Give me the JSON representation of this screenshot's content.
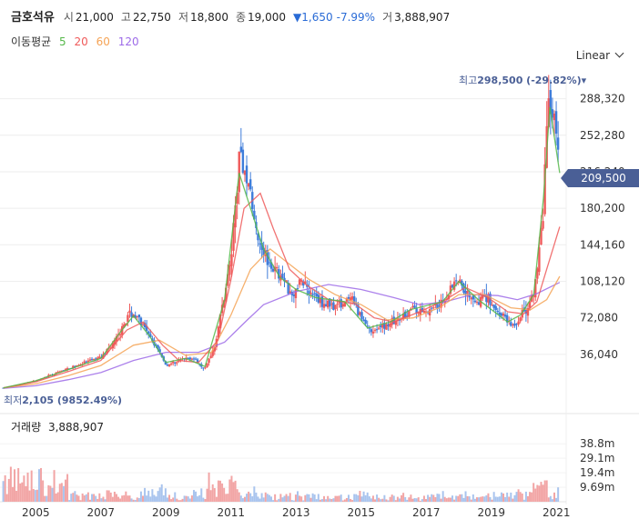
{
  "header": {
    "name": "금호석유",
    "open_label": "시",
    "open": "21,000",
    "high_label": "고",
    "high": "22,750",
    "low_label": "저",
    "low": "18,800",
    "close_label": "종",
    "close": "19,000",
    "change": "▼1,650",
    "change_pct": "-7.99%",
    "volume_label": "거",
    "volume": "3,888,907"
  },
  "moving_average": {
    "label": "이동평균",
    "periods": [
      "5",
      "20",
      "60",
      "120"
    ],
    "colors": [
      "#55b849",
      "#ef5a5a",
      "#f5a355",
      "#9d6be8"
    ]
  },
  "scale_mode": "Linear",
  "current_price_tag": "209,500",
  "annotations": {
    "high_label": "최고",
    "high_value": "298,500 (-29.82%)",
    "low_label": "최저",
    "low_value": "2,105 (9852.49%)"
  },
  "volume_panel": {
    "label": "거래량",
    "value": "3,888,907",
    "ticks": [
      "38.8m",
      "29.1m",
      "19.4m",
      "9.69m"
    ]
  },
  "colors": {
    "up": "#ef5a5a",
    "down": "#3f7dda",
    "tag_bg": "#4a5f96"
  },
  "chart_data": {
    "type": "candlestick",
    "x_ticks": [
      "2005",
      "2007",
      "2009",
      "2011",
      "2013",
      "2015",
      "2017",
      "2019",
      "2021"
    ],
    "y_ticks": [
      "288,320",
      "252,280",
      "216,240",
      "180,200",
      "144,160",
      "108,120",
      "72,080",
      "36,040"
    ],
    "ylim": [
      0,
      305000
    ],
    "xlim": [
      2003.9,
      2021.3
    ],
    "price_path": [
      [
        2004.0,
        3000
      ],
      [
        2004.5,
        6000
      ],
      [
        2005.0,
        10000
      ],
      [
        2005.5,
        16000
      ],
      [
        2006.0,
        22000
      ],
      [
        2006.5,
        28000
      ],
      [
        2007.0,
        33000
      ],
      [
        2007.5,
        52000
      ],
      [
        2007.9,
        78000
      ],
      [
        2008.2,
        70000
      ],
      [
        2008.5,
        52000
      ],
      [
        2008.8,
        40000
      ],
      [
        2009.0,
        25000
      ],
      [
        2009.4,
        30000
      ],
      [
        2009.8,
        33000
      ],
      [
        2010.2,
        22000
      ],
      [
        2010.5,
        45000
      ],
      [
        2010.8,
        95000
      ],
      [
        2011.0,
        130000
      ],
      [
        2011.25,
        230000
      ],
      [
        2011.5,
        215000
      ],
      [
        2011.75,
        160000
      ],
      [
        2012.0,
        140000
      ],
      [
        2012.3,
        120000
      ],
      [
        2012.6,
        110000
      ],
      [
        2012.9,
        95000
      ],
      [
        2013.2,
        110000
      ],
      [
        2013.5,
        95000
      ],
      [
        2013.9,
        85000
      ],
      [
        2014.3,
        85000
      ],
      [
        2014.7,
        90000
      ],
      [
        2015.0,
        72000
      ],
      [
        2015.3,
        60000
      ],
      [
        2015.6,
        62000
      ],
      [
        2015.9,
        68000
      ],
      [
        2016.2,
        70000
      ],
      [
        2016.5,
        80000
      ],
      [
        2016.9,
        78000
      ],
      [
        2017.2,
        80000
      ],
      [
        2017.5,
        88000
      ],
      [
        2017.8,
        105000
      ],
      [
        2018.0,
        110000
      ],
      [
        2018.3,
        95000
      ],
      [
        2018.6,
        90000
      ],
      [
        2018.9,
        92000
      ],
      [
        2019.2,
        78000
      ],
      [
        2019.5,
        70000
      ],
      [
        2019.7,
        62000
      ],
      [
        2019.9,
        75000
      ],
      [
        2020.1,
        80000
      ],
      [
        2020.3,
        95000
      ],
      [
        2020.5,
        140000
      ],
      [
        2020.6,
        180000
      ],
      [
        2020.7,
        250000
      ],
      [
        2020.8,
        290000
      ],
      [
        2020.95,
        270000
      ],
      [
        2021.05,
        240000
      ],
      [
        2021.1,
        209500
      ]
    ],
    "ma5": [
      [
        2004.0,
        3000
      ],
      [
        2005.0,
        10000
      ],
      [
        2006.0,
        21000
      ],
      [
        2007.0,
        32000
      ],
      [
        2007.6,
        58000
      ],
      [
        2008.0,
        74000
      ],
      [
        2008.5,
        54000
      ],
      [
        2009.0,
        28000
      ],
      [
        2009.6,
        32000
      ],
      [
        2010.2,
        24000
      ],
      [
        2010.8,
        90000
      ],
      [
        2011.25,
        215000
      ],
      [
        2011.6,
        180000
      ],
      [
        2012.0,
        140000
      ],
      [
        2012.5,
        112000
      ],
      [
        2013.0,
        100000
      ],
      [
        2013.6,
        92000
      ],
      [
        2014.5,
        88000
      ],
      [
        2015.2,
        62000
      ],
      [
        2015.9,
        68000
      ],
      [
        2016.5,
        80000
      ],
      [
        2017.5,
        88000
      ],
      [
        2018.0,
        108000
      ],
      [
        2018.6,
        90000
      ],
      [
        2019.5,
        68000
      ],
      [
        2019.9,
        75000
      ],
      [
        2020.3,
        95000
      ],
      [
        2020.6,
        190000
      ],
      [
        2020.8,
        280000
      ],
      [
        2021.1,
        215000
      ]
    ],
    "ma20": [
      [
        2004.0,
        3000
      ],
      [
        2005.0,
        9000
      ],
      [
        2006.0,
        19000
      ],
      [
        2007.0,
        30000
      ],
      [
        2007.8,
        60000
      ],
      [
        2008.3,
        68000
      ],
      [
        2008.9,
        45000
      ],
      [
        2009.4,
        30000
      ],
      [
        2010.0,
        28000
      ],
      [
        2010.6,
        50000
      ],
      [
        2011.0,
        110000
      ],
      [
        2011.4,
        180000
      ],
      [
        2011.9,
        195000
      ],
      [
        2012.3,
        160000
      ],
      [
        2012.8,
        120000
      ],
      [
        2013.3,
        105000
      ],
      [
        2014.0,
        90000
      ],
      [
        2014.8,
        86000
      ],
      [
        2015.4,
        72000
      ],
      [
        2016.0,
        68000
      ],
      [
        2016.8,
        78000
      ],
      [
        2017.6,
        90000
      ],
      [
        2018.2,
        102000
      ],
      [
        2018.9,
        92000
      ],
      [
        2019.5,
        78000
      ],
      [
        2020.0,
        76000
      ],
      [
        2020.4,
        88000
      ],
      [
        2020.7,
        120000
      ],
      [
        2021.1,
        162000
      ]
    ],
    "ma60": [
      [
        2004.0,
        3000
      ],
      [
        2005.0,
        7000
      ],
      [
        2006.0,
        15000
      ],
      [
        2007.0,
        25000
      ],
      [
        2008.0,
        45000
      ],
      [
        2008.8,
        50000
      ],
      [
        2009.6,
        35000
      ],
      [
        2010.4,
        38000
      ],
      [
        2011.0,
        75000
      ],
      [
        2011.6,
        120000
      ],
      [
        2012.2,
        140000
      ],
      [
        2012.8,
        125000
      ],
      [
        2013.4,
        110000
      ],
      [
        2014.2,
        95000
      ],
      [
        2015.0,
        85000
      ],
      [
        2015.8,
        70000
      ],
      [
        2016.6,
        72000
      ],
      [
        2017.4,
        82000
      ],
      [
        2018.0,
        95000
      ],
      [
        2018.8,
        95000
      ],
      [
        2019.6,
        82000
      ],
      [
        2020.2,
        80000
      ],
      [
        2020.7,
        90000
      ],
      [
        2021.1,
        113000
      ]
    ],
    "ma120": [
      [
        2004.0,
        2500
      ],
      [
        2005.0,
        5000
      ],
      [
        2006.0,
        11000
      ],
      [
        2007.0,
        18000
      ],
      [
        2008.0,
        30000
      ],
      [
        2009.0,
        38000
      ],
      [
        2010.0,
        38000
      ],
      [
        2010.8,
        48000
      ],
      [
        2011.5,
        70000
      ],
      [
        2012.0,
        85000
      ],
      [
        2013.0,
        98000
      ],
      [
        2014.0,
        105000
      ],
      [
        2015.0,
        100000
      ],
      [
        2016.0,
        92000
      ],
      [
        2016.8,
        85000
      ],
      [
        2017.6,
        88000
      ],
      [
        2018.4,
        95000
      ],
      [
        2019.2,
        94000
      ],
      [
        2019.8,
        90000
      ],
      [
        2020.4,
        96000
      ],
      [
        2021.1,
        107000
      ]
    ],
    "volume_ylim": [
      0,
      45000000
    ]
  }
}
